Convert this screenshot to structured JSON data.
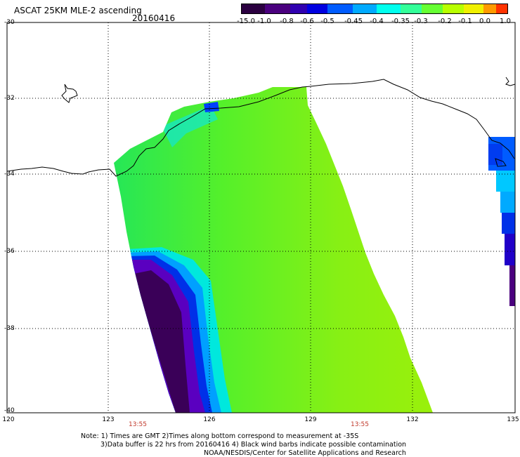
{
  "header": {
    "title": "ASCAT 25KM MLE-2 ascending",
    "date": "20160416"
  },
  "colorbar": {
    "labels": [
      "-15.0",
      "-1.0",
      "-0.8",
      "-0.6",
      "-0.5",
      "-0.45",
      "-0.4",
      "-0.35",
      "-0.3",
      "-0.2",
      "-0.1",
      "0.0",
      "1.0"
    ],
    "colors": [
      "#2b0040",
      "#4a007e",
      "#3000b0",
      "#0000e0",
      "#005cff",
      "#00aaff",
      "#00ffee",
      "#33ff99",
      "#66ff33",
      "#b8ff00",
      "#f0f000",
      "#ff9a00",
      "#ff3300"
    ]
  },
  "axes": {
    "lat_labels": [
      "-30",
      "-32",
      "-34",
      "-36",
      "-38",
      "-40"
    ],
    "lon_labels": [
      "120",
      "123",
      "126",
      "129",
      "132",
      "135"
    ]
  },
  "times": [
    "13:55",
    "13:55"
  ],
  "notes": {
    "line1": "Note: 1) Times are GMT  2)Times along bottom correspond to measurement at -35S",
    "line2": "3)Data buffer is 22 hrs from 20160416  4) Black wind barbs indicate possible contamination",
    "line3": "NOAA/NESDIS/Center for Satellite Applications and Research"
  }
}
